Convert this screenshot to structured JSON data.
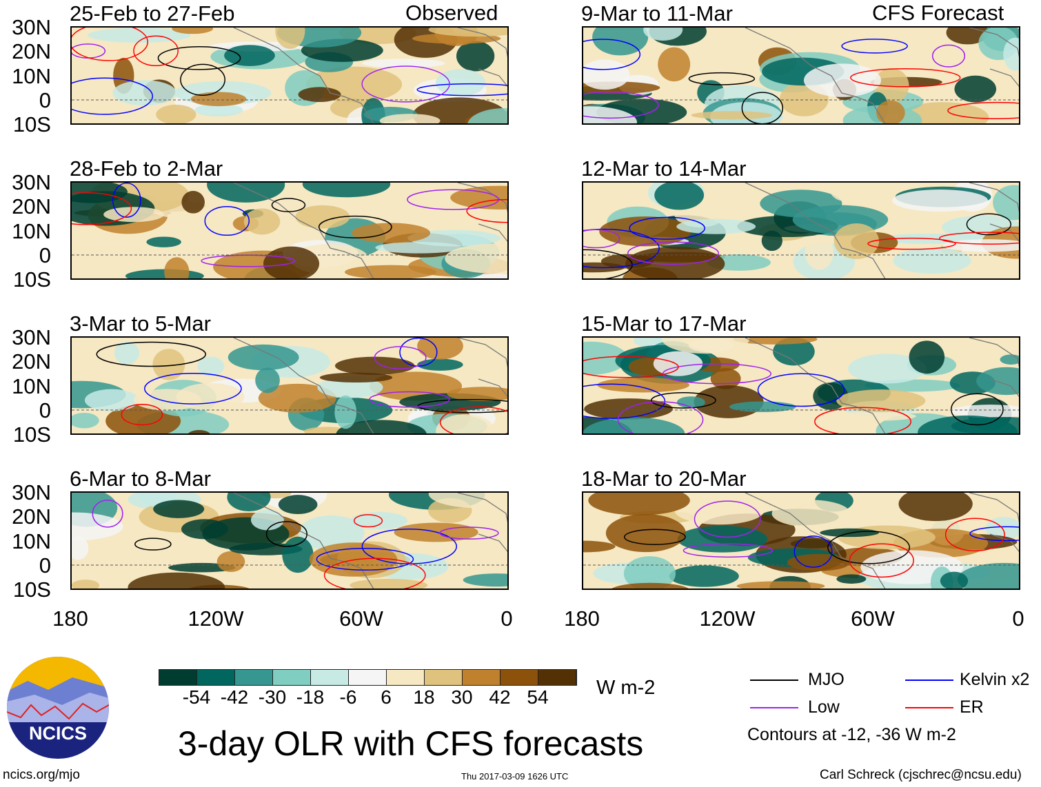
{
  "left_header": "Observed",
  "right_header": "CFS Forecast",
  "panels_left": [
    "25-Feb to 27-Feb",
    "28-Feb to 2-Mar",
    "3-Mar to 5-Mar",
    "6-Mar to 8-Mar"
  ],
  "panels_right": [
    "9-Mar to 11-Mar",
    "12-Mar to 14-Mar",
    "15-Mar to 17-Mar",
    "18-Mar to 20-Mar"
  ],
  "lat_labels": [
    "30N",
    "20N",
    "10N",
    "0",
    "10S"
  ],
  "lon_labels": [
    "180",
    "120W",
    "60W",
    "0"
  ],
  "colorbar": {
    "colors": [
      "#003d30",
      "#01665e",
      "#35978f",
      "#80cdc1",
      "#c7eae5",
      "#f5f5f5",
      "#f6e8c3",
      "#dfc27d",
      "#bf812d",
      "#8c510a",
      "#543005"
    ],
    "labels": [
      "-54",
      "-42",
      "-30",
      "-18",
      "-6",
      "6",
      "18",
      "30",
      "42",
      "54"
    ],
    "units": "W m-2"
  },
  "title": "3-day OLR with CFS forecasts",
  "legend": [
    {
      "label": "MJO",
      "color": "#000000"
    },
    {
      "label": "Kelvin x2",
      "color": "#0000ff"
    },
    {
      "label": "Low",
      "color": "#a020f0"
    },
    {
      "label": "ER",
      "color": "#ff0000"
    }
  ],
  "contours_note": "Contours at -12, -36 W m-2",
  "logo_text": "NCICS",
  "footer_left": "ncics.org/mjo",
  "timestamp": "Thu 2017-03-09 1626 UTC",
  "footer_right": "Carl Schreck (cjschrec@ncsu.edu)"
}
